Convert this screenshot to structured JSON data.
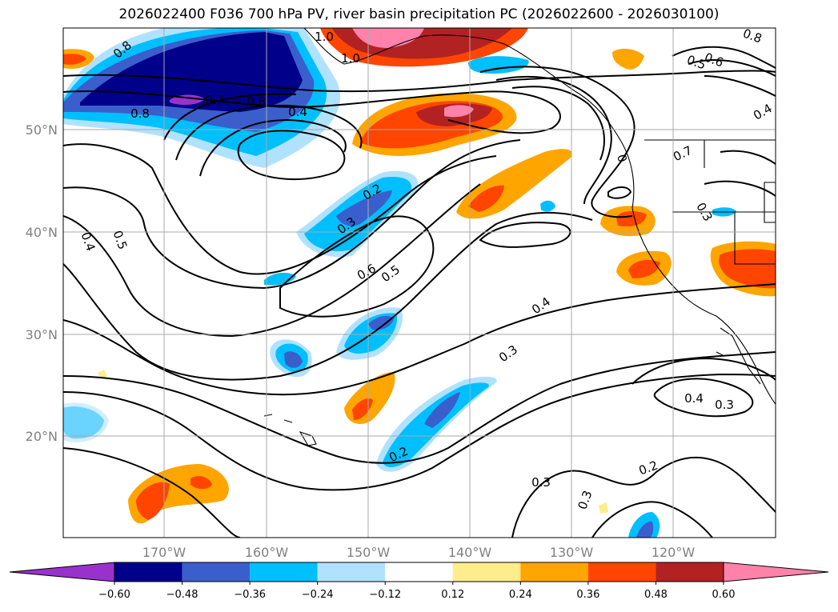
{
  "title": "2026022400 F036 700 hPa PV, river basin precipitation PC (2026022600 - 2026030100)",
  "lat_labels": [
    "50°N",
    "40°N",
    "30°N",
    "20°N"
  ],
  "lon_labels": [
    "170°W",
    "160°W",
    "150°W",
    "140°W",
    "130°W",
    "120°W"
  ],
  "colorbar": {
    "ticks": [
      "−0.60",
      "−0.48",
      "−0.36",
      "−0.24",
      "−0.12",
      "0.12",
      "0.24",
      "0.36",
      "0.48",
      "0.60"
    ],
    "colors": [
      "#9932cc",
      "#00008b",
      "#3a5fcd",
      "#00bfff",
      "#b0e2ff",
      "#ffffff",
      "#ffec8b",
      "#ffa500",
      "#ff4500",
      "#b22222",
      "#ff82ab"
    ]
  },
  "pv_contour_labels": [
    "0.8",
    "0.8",
    "0.7",
    "0.8",
    "0.4",
    "1.0",
    "1.0",
    "0.8",
    "0.6",
    "0.5",
    "0.4",
    "0.7",
    "0",
    "0.3",
    "0.2",
    "0.3",
    "0.4",
    "0.5",
    "0.6",
    "0.5",
    "0.4",
    "0.3",
    "0.4",
    "0.3",
    "0.2",
    "0.3",
    "0.2",
    "0.3"
  ]
}
